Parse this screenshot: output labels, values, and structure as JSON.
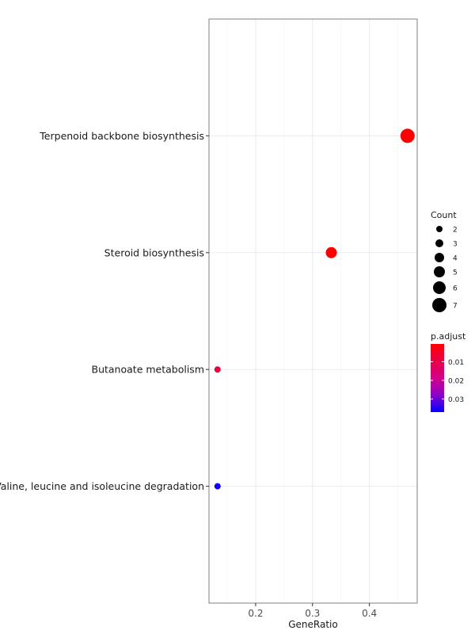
{
  "chart_data": {
    "type": "scatter",
    "xlabel": "GeneRatio",
    "ylabel": "",
    "xlim": [
      0.118,
      0.484
    ],
    "x_ticks": [
      0.2,
      0.3,
      0.4
    ],
    "x_tick_labels": [
      "0.2",
      "0.3",
      "0.4"
    ],
    "grid": true,
    "categories": [
      "Terpenoid backbone biosynthesis",
      "Steroid biosynthesis",
      "Butanoate metabolism",
      "Valine, leucine and isoleucine degradation"
    ],
    "points": [
      {
        "category": "Terpenoid backbone biosynthesis",
        "gene_ratio": 0.467,
        "count": 7,
        "p_adjust": 0.0005
      },
      {
        "category": "Steroid biosynthesis",
        "gene_ratio": 0.333,
        "count": 5,
        "p_adjust": 0.0005
      },
      {
        "category": "Butanoate metabolism",
        "gene_ratio": 0.133,
        "count": 2,
        "p_adjust": 0.009
      },
      {
        "category": "Valine, leucine and isoleucine degradation",
        "gene_ratio": 0.133,
        "count": 2,
        "p_adjust": 0.036
      }
    ],
    "legend": {
      "position": "right",
      "size": {
        "title": "Count",
        "values": [
          2,
          3,
          4,
          5,
          6,
          7
        ],
        "labels": [
          "2",
          "3",
          "4",
          "5",
          "6",
          "7"
        ]
      },
      "color": {
        "title": "p.adjust",
        "range": [
          0.0005,
          0.037
        ],
        "ticks": [
          0.01,
          0.02,
          0.03
        ],
        "tick_labels": [
          "0.01",
          "0.02",
          "0.03"
        ],
        "low_color": "#ff0000",
        "high_color": "#0000ff",
        "reverse": true
      }
    }
  }
}
